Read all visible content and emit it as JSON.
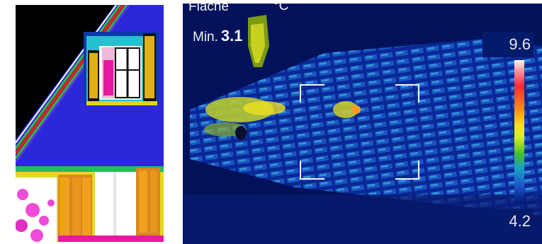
{
  "thermal_view": {
    "area_label": "Fläche",
    "unit": "°C",
    "min_label": "Min.",
    "min_value": "3.1",
    "scale_max": "9.6",
    "scale_min": "4.2"
  },
  "colors": {
    "cold_background": "#02125a",
    "wall_blue": "#2a28d8",
    "hot_white": "#ffffff",
    "warm_orange": "#e09a20",
    "warm_yellow": "#e6e21e"
  }
}
